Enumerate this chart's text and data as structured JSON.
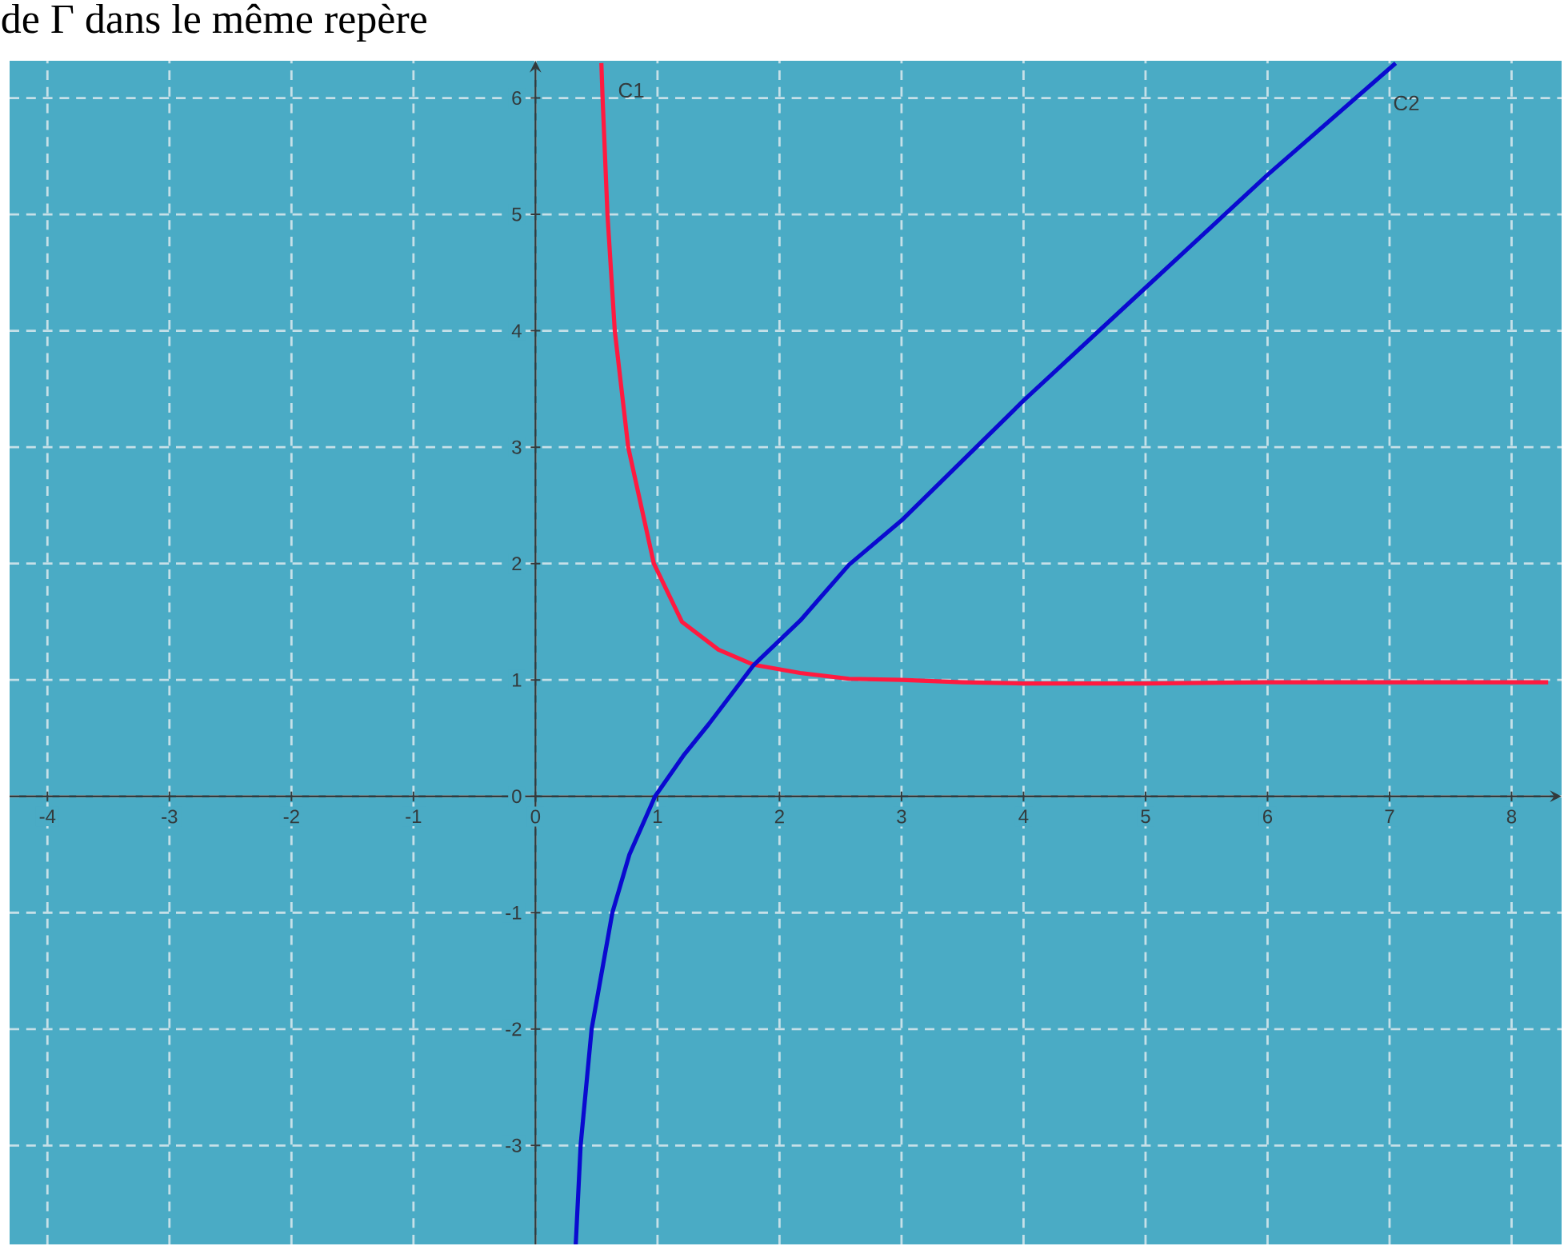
{
  "chart_data": {
    "type": "line",
    "title": "de Γ dans le même repère",
    "xlim": [
      -4.31,
      8.41
    ],
    "ylim": [
      -3.85,
      6.32
    ],
    "xticks": [
      -4,
      -3,
      -2,
      -1,
      0,
      1,
      2,
      3,
      4,
      5,
      6,
      7,
      8
    ],
    "yticks": [
      -3,
      -2,
      -1,
      0,
      1,
      2,
      3,
      4,
      5,
      6
    ],
    "grid": true,
    "marker": "none",
    "line_style": "solid",
    "series": [
      {
        "name": "C1",
        "color": "#ff1a40",
        "x": [
          0.54,
          0.55,
          0.59,
          0.65,
          0.76,
          0.97,
          1.2,
          1.5,
          1.79,
          2.17,
          2.57,
          3,
          3.5,
          4,
          5,
          6,
          7,
          8.3
        ],
        "values": [
          6.3,
          6,
          5,
          4,
          3,
          2,
          1.5,
          1.26,
          1.13,
          1.06,
          1.01,
          1.0,
          0.98,
          0.97,
          0.97,
          0.98,
          0.98,
          0.98
        ]
      },
      {
        "name": "C2",
        "color": "#0a0ad0",
        "x": [
          0.33,
          0.37,
          0.46,
          0.63,
          0.77,
          0.98,
          1.22,
          1.42,
          1.79,
          2.17,
          2.57,
          3,
          4,
          5,
          6,
          7.05
        ],
        "values": [
          -3.85,
          -3,
          -2,
          -1,
          -0.5,
          0,
          0.36,
          0.62,
          1.13,
          1.51,
          1.99,
          2.37,
          3.4,
          4.37,
          5.34,
          6.3
        ]
      }
    ]
  }
}
